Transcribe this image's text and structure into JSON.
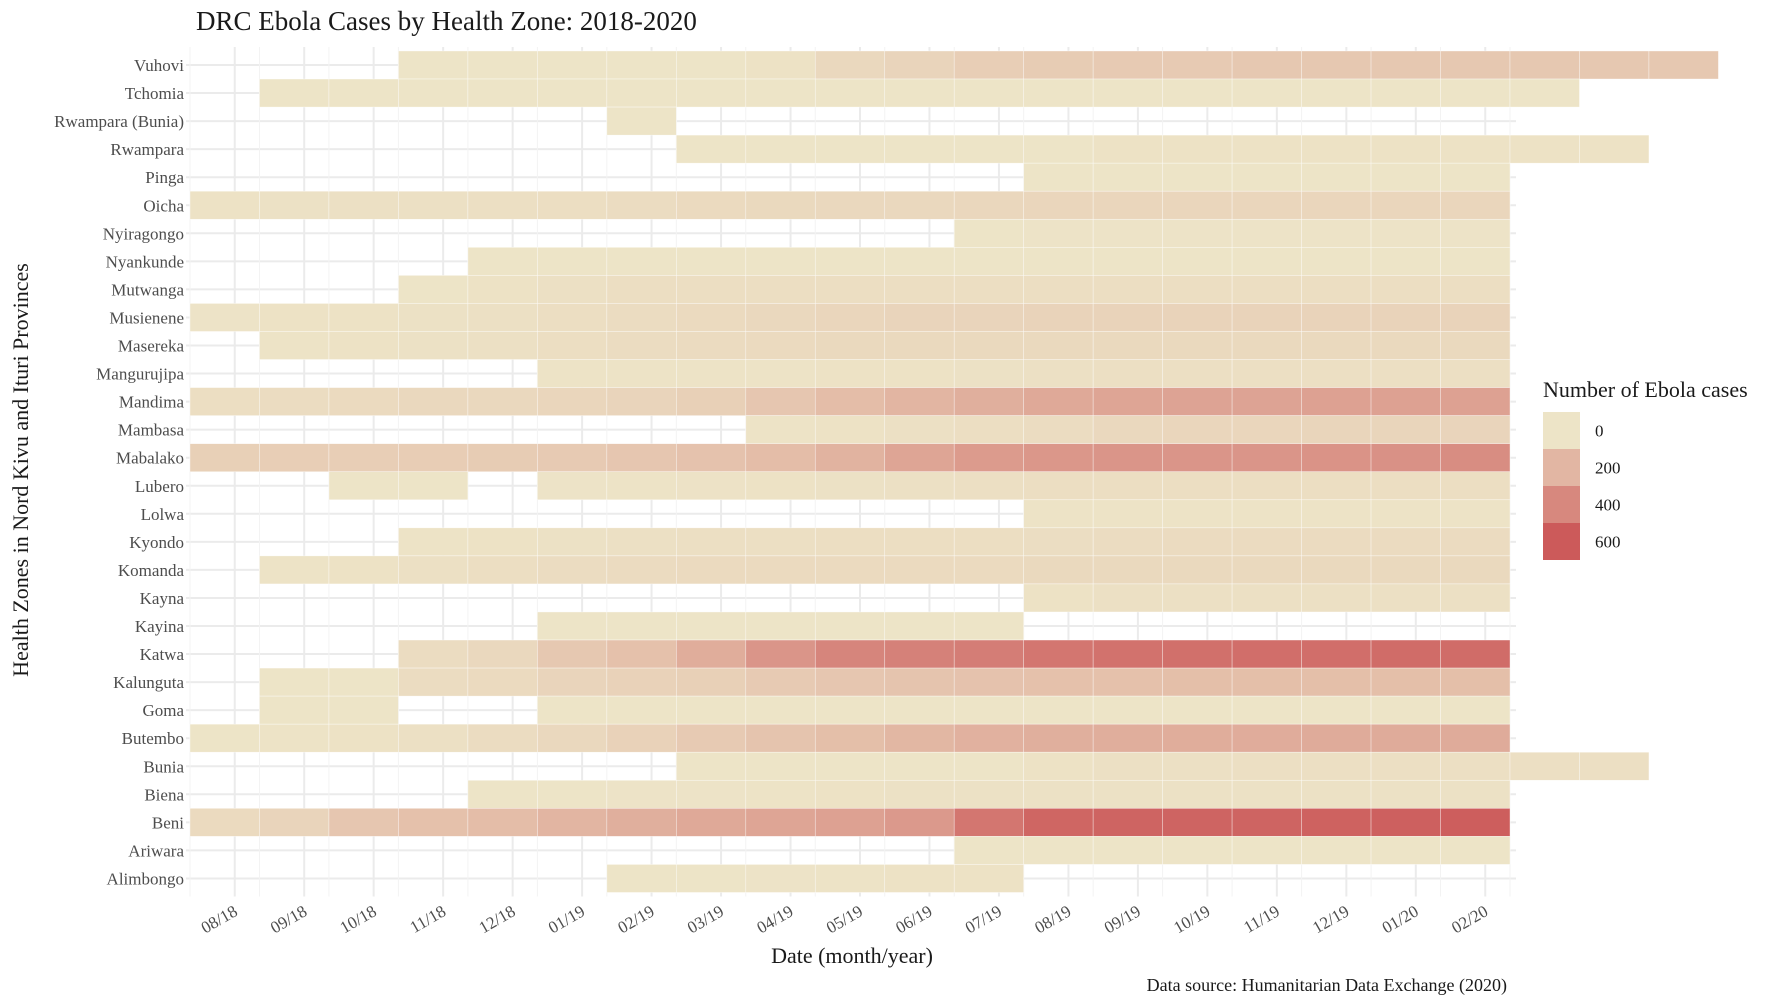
{
  "chart_data": {
    "type": "heatmap",
    "title": "DRC Ebola Cases by Health Zone: 2018-2020",
    "xlabel": "Date (month/year)",
    "ylabel": "Health Zones in Nord Kivu and Ituri Provinces",
    "caption": "Data source: Humanitarian Data Exchange (2020)",
    "x_ticks": [
      "08/18",
      "09/18",
      "10/18",
      "11/18",
      "12/18",
      "01/19",
      "02/19",
      "03/19",
      "04/19",
      "05/19",
      "06/19",
      "07/19",
      "08/19",
      "09/19",
      "10/19",
      "11/19",
      "12/19",
      "01/20",
      "02/20"
    ],
    "grid": true,
    "legend": {
      "title": "Number of Ebola cases",
      "position": "right",
      "breaks": [
        0,
        200,
        400,
        600
      ],
      "labels": [
        "0",
        "200",
        "400",
        "600"
      ],
      "color_low": "#ede4c7",
      "color_high": "#cc5a5a",
      "max_value": 700
    },
    "zones": [
      {
        "name": "Vuhovi",
        "start": 3,
        "values": [
          0,
          0,
          0,
          0,
          0,
          10,
          60,
          80,
          110,
          120,
          130,
          130,
          140,
          140,
          140,
          140,
          140,
          140,
          140
        ]
      },
      {
        "name": "Tchomia",
        "start": 1,
        "values": [
          0,
          0,
          0,
          0,
          0,
          0,
          0,
          0,
          0,
          0,
          0,
          0,
          2,
          2,
          2,
          2,
          2,
          2,
          2
        ]
      },
      {
        "name": "Rwampara (Bunia)",
        "start": 6,
        "values": [
          0
        ]
      },
      {
        "name": "Rwampara",
        "start": 7,
        "values": [
          0,
          0,
          0,
          0,
          0,
          0,
          10,
          10,
          10,
          10,
          10,
          10,
          10,
          10
        ]
      },
      {
        "name": "Pinga",
        "start": 12,
        "values": [
          1,
          1,
          1,
          1,
          1,
          1,
          1
        ]
      },
      {
        "name": "Oicha",
        "start": 0,
        "values": [
          10,
          15,
          20,
          20,
          25,
          30,
          40,
          50,
          55,
          60,
          60,
          65,
          70,
          70,
          70,
          70,
          70,
          70,
          70
        ]
      },
      {
        "name": "Nyiragongo",
        "start": 11,
        "values": [
          1,
          3,
          3,
          3,
          3,
          3,
          3,
          3
        ]
      },
      {
        "name": "Nyankunde",
        "start": 4,
        "values": [
          1,
          1,
          1,
          1,
          1,
          1,
          1,
          1,
          1,
          1,
          1,
          1,
          1,
          1,
          1
        ]
      },
      {
        "name": "Mutwanga",
        "start": 3,
        "values": [
          1,
          10,
          20,
          30,
          30,
          30,
          30,
          30,
          30,
          30,
          30,
          30,
          30,
          30,
          30,
          30
        ]
      },
      {
        "name": "Musienene",
        "start": 0,
        "values": [
          3,
          10,
          10,
          15,
          20,
          30,
          40,
          50,
          60,
          70,
          80,
          80,
          85,
          85,
          85,
          85,
          85,
          85,
          85
        ]
      },
      {
        "name": "Masereka",
        "start": 1,
        "values": [
          5,
          10,
          15,
          20,
          30,
          40,
          45,
          50,
          55,
          55,
          55,
          55,
          55,
          55,
          55,
          55,
          55,
          55
        ]
      },
      {
        "name": "Mangurujipa",
        "start": 5,
        "values": [
          5,
          5,
          5,
          5,
          10,
          10,
          15,
          20,
          25,
          25,
          25,
          25,
          25,
          25
        ]
      },
      {
        "name": "Mandima",
        "start": 0,
        "values": [
          30,
          40,
          50,
          60,
          60,
          70,
          80,
          100,
          150,
          200,
          240,
          270,
          300,
          320,
          330,
          330,
          340,
          340,
          340
        ]
      },
      {
        "name": "Mambasa",
        "start": 8,
        "values": [
          5,
          10,
          20,
          30,
          40,
          60,
          70,
          70,
          75,
          75,
          80
        ]
      },
      {
        "name": "Mabalako",
        "start": 0,
        "values": [
          100,
          110,
          110,
          115,
          120,
          130,
          150,
          170,
          200,
          250,
          320,
          370,
          390,
          400,
          400,
          400,
          410,
          420,
          440
        ]
      },
      {
        "name": "Lubero",
        "start": 2,
        "values": [
          2,
          2,
          null,
          3,
          5,
          8,
          10,
          15,
          20,
          25,
          30,
          30,
          30,
          30,
          30,
          30,
          30
        ]
      },
      {
        "name": "Lolwa",
        "start": 12,
        "values": [
          6,
          6,
          6,
          6,
          6,
          6,
          6
        ]
      },
      {
        "name": "Kyondo",
        "start": 3,
        "values": [
          5,
          10,
          15,
          20,
          25,
          25,
          30,
          30,
          30,
          35,
          40,
          45,
          45,
          45,
          45,
          45
        ]
      },
      {
        "name": "Komanda",
        "start": 1,
        "values": [
          5,
          10,
          20,
          30,
          40,
          45,
          50,
          50,
          50,
          50,
          50,
          55,
          55,
          55,
          55,
          55,
          55,
          55
        ]
      },
      {
        "name": "Kayna",
        "start": 12,
        "values": [
          10,
          20,
          20,
          20,
          20,
          20,
          20
        ]
      },
      {
        "name": "Kayina",
        "start": 5,
        "values": [
          2,
          2,
          2,
          2,
          2,
          2,
          2
        ]
      },
      {
        "name": "Katwa",
        "start": 3,
        "values": [
          40,
          60,
          140,
          180,
          280,
          400,
          480,
          500,
          520,
          560,
          580,
          590,
          600,
          600,
          610,
          610
        ]
      },
      {
        "name": "Kalunguta",
        "start": 1,
        "values": [
          1,
          1,
          40,
          50,
          80,
          90,
          100,
          130,
          150,
          160,
          170,
          180,
          180,
          190,
          190,
          190,
          190,
          190
        ]
      },
      {
        "name": "Goma",
        "start": 1,
        "values": [
          1,
          1,
          null,
          null,
          1,
          1,
          1,
          1,
          1,
          1,
          1,
          1,
          1,
          1,
          1,
          1,
          1,
          1
        ]
      },
      {
        "name": "Butembo",
        "start": 0,
        "values": [
          2,
          5,
          10,
          20,
          40,
          60,
          90,
          130,
          160,
          190,
          230,
          260,
          270,
          275,
          280,
          285,
          290,
          290,
          290
        ]
      },
      {
        "name": "Bunia",
        "start": 7,
        "values": [
          1,
          1,
          1,
          1,
          1,
          10,
          20,
          20,
          25,
          25,
          25,
          25,
          25,
          25
        ]
      },
      {
        "name": "Biena",
        "start": 4,
        "values": [
          1,
          2,
          3,
          3,
          5,
          10,
          15,
          15,
          15,
          15,
          15,
          15,
          15,
          15,
          15
        ]
      },
      {
        "name": "Beni",
        "start": 0,
        "values": [
          50,
          80,
          150,
          180,
          200,
          240,
          270,
          300,
          320,
          340,
          380,
          560,
          640,
          650,
          650,
          650,
          660,
          670,
          680
        ]
      },
      {
        "name": "Ariwara",
        "start": 11,
        "values": [
          1,
          1,
          1,
          1,
          1,
          1,
          1,
          1
        ]
      },
      {
        "name": "Alimbongo",
        "start": 6,
        "values": [
          1,
          2,
          3,
          5,
          10,
          10
        ]
      }
    ]
  }
}
